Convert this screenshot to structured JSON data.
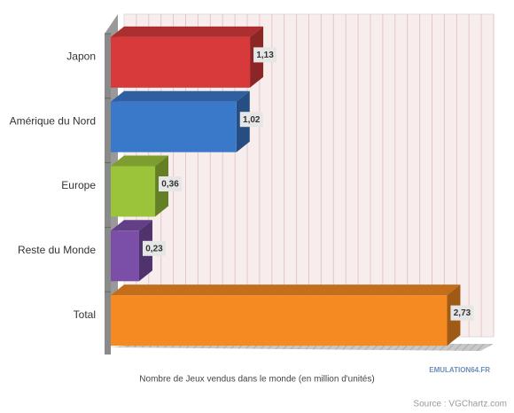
{
  "chart_data": {
    "type": "bar",
    "orientation": "horizontal",
    "categories": [
      "Japon",
      "Amérique du Nord",
      "Europe",
      "Reste du Monde",
      "Total"
    ],
    "values": [
      1.13,
      1.02,
      0.36,
      0.23,
      2.73
    ],
    "value_labels": [
      "1,13",
      "1,02",
      "0,36",
      "0,23",
      "2,73"
    ],
    "colors": [
      "#d8393b",
      "#3a78c9",
      "#9cc43a",
      "#7b4fa8",
      "#f58a22"
    ],
    "xlabel": "Nombre de Jeux vendus dans le monde (en million d'unités)",
    "xlim": [
      0,
      3
    ],
    "grid": true,
    "watermark": "EMULATION64.FR",
    "source": "Source : VGChartz.com"
  }
}
